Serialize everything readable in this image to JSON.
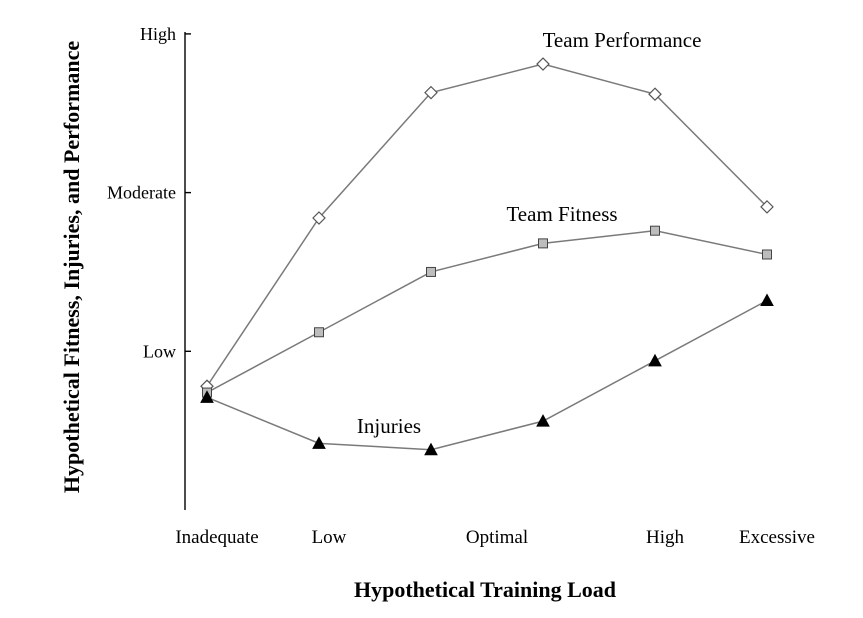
{
  "chart_data": {
    "type": "line",
    "title": "",
    "xlabel": "Hypothetical Training Load",
    "ylabel": "Hypothetical Fitness, Injuries, and Performance",
    "x": [
      0,
      1,
      2,
      3,
      4,
      5
    ],
    "x_tick_labels": [
      {
        "x": 0,
        "label": "Inadequate"
      },
      {
        "x": 1,
        "label": "Low"
      },
      {
        "x": 2.5,
        "label": "Optimal"
      },
      {
        "x": 4,
        "label": "High"
      },
      {
        "x": 5,
        "label": "Excessive"
      }
    ],
    "y_ticks": [
      {
        "value": 1,
        "label": "Low"
      },
      {
        "value": 2,
        "label": "Moderate"
      },
      {
        "value": 3,
        "label": "High"
      }
    ],
    "xlim": [
      -0.25,
      5.1
    ],
    "ylim": [
      0,
      3
    ],
    "grid": false,
    "legend": "none (series labeled directly on chart)",
    "series": [
      {
        "name": "Team Performance",
        "marker": "diamond-open",
        "color": "#7a7a7a",
        "values": [
          0.78,
          1.84,
          2.63,
          2.81,
          2.62,
          1.91
        ]
      },
      {
        "name": "Team Fitness",
        "marker": "square-gray",
        "color": "#7a7a7a",
        "values": [
          0.74,
          1.12,
          1.5,
          1.68,
          1.76,
          1.61
        ]
      },
      {
        "name": "Injuries",
        "marker": "triangle-black",
        "color": "#7a7a7a",
        "values": [
          0.71,
          0.42,
          0.38,
          0.56,
          0.94,
          1.32
        ]
      }
    ]
  }
}
